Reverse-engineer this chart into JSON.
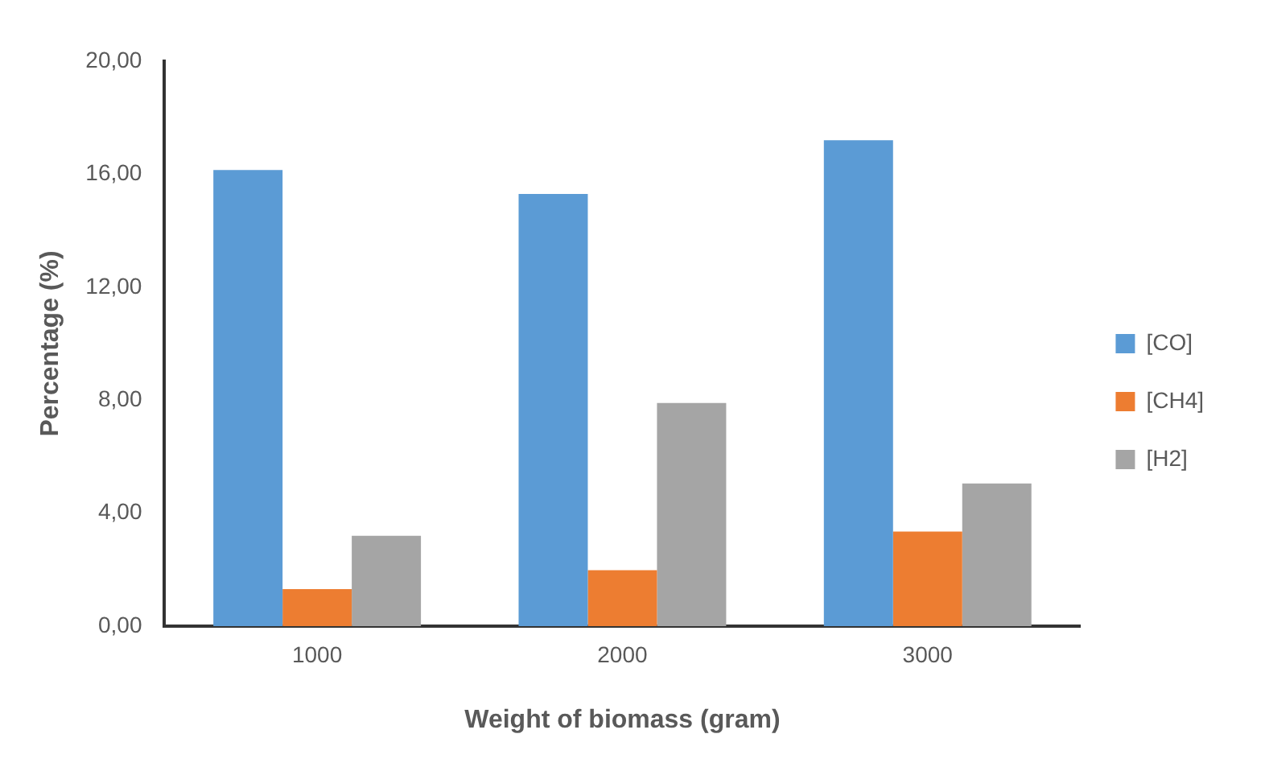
{
  "chart_data": {
    "type": "bar",
    "xlabel": "Weight of biomass (gram)",
    "ylabel": "Percentage (%)",
    "categories": [
      "1000",
      "2000",
      "3000"
    ],
    "series": [
      {
        "name": "[CO]",
        "color": "#5b9bd5",
        "values": [
          16.15,
          15.3,
          17.2
        ]
      },
      {
        "name": "[CH4]",
        "color": "#ed7d31",
        "values": [
          1.31,
          1.98,
          3.35
        ]
      },
      {
        "name": "[H2]",
        "color": "#a5a5a5",
        "values": [
          3.2,
          7.9,
          5.05
        ]
      }
    ],
    "ylim": [
      0,
      20
    ],
    "yticks": [
      {
        "value": 0,
        "label": "0,00"
      },
      {
        "value": 4,
        "label": "4,00"
      },
      {
        "value": 8,
        "label": "8,00"
      },
      {
        "value": 12,
        "label": "12,00"
      },
      {
        "value": 16,
        "label": "16,00"
      },
      {
        "value": 20,
        "label": "20,00"
      }
    ],
    "grid": false,
    "legend": "right"
  }
}
